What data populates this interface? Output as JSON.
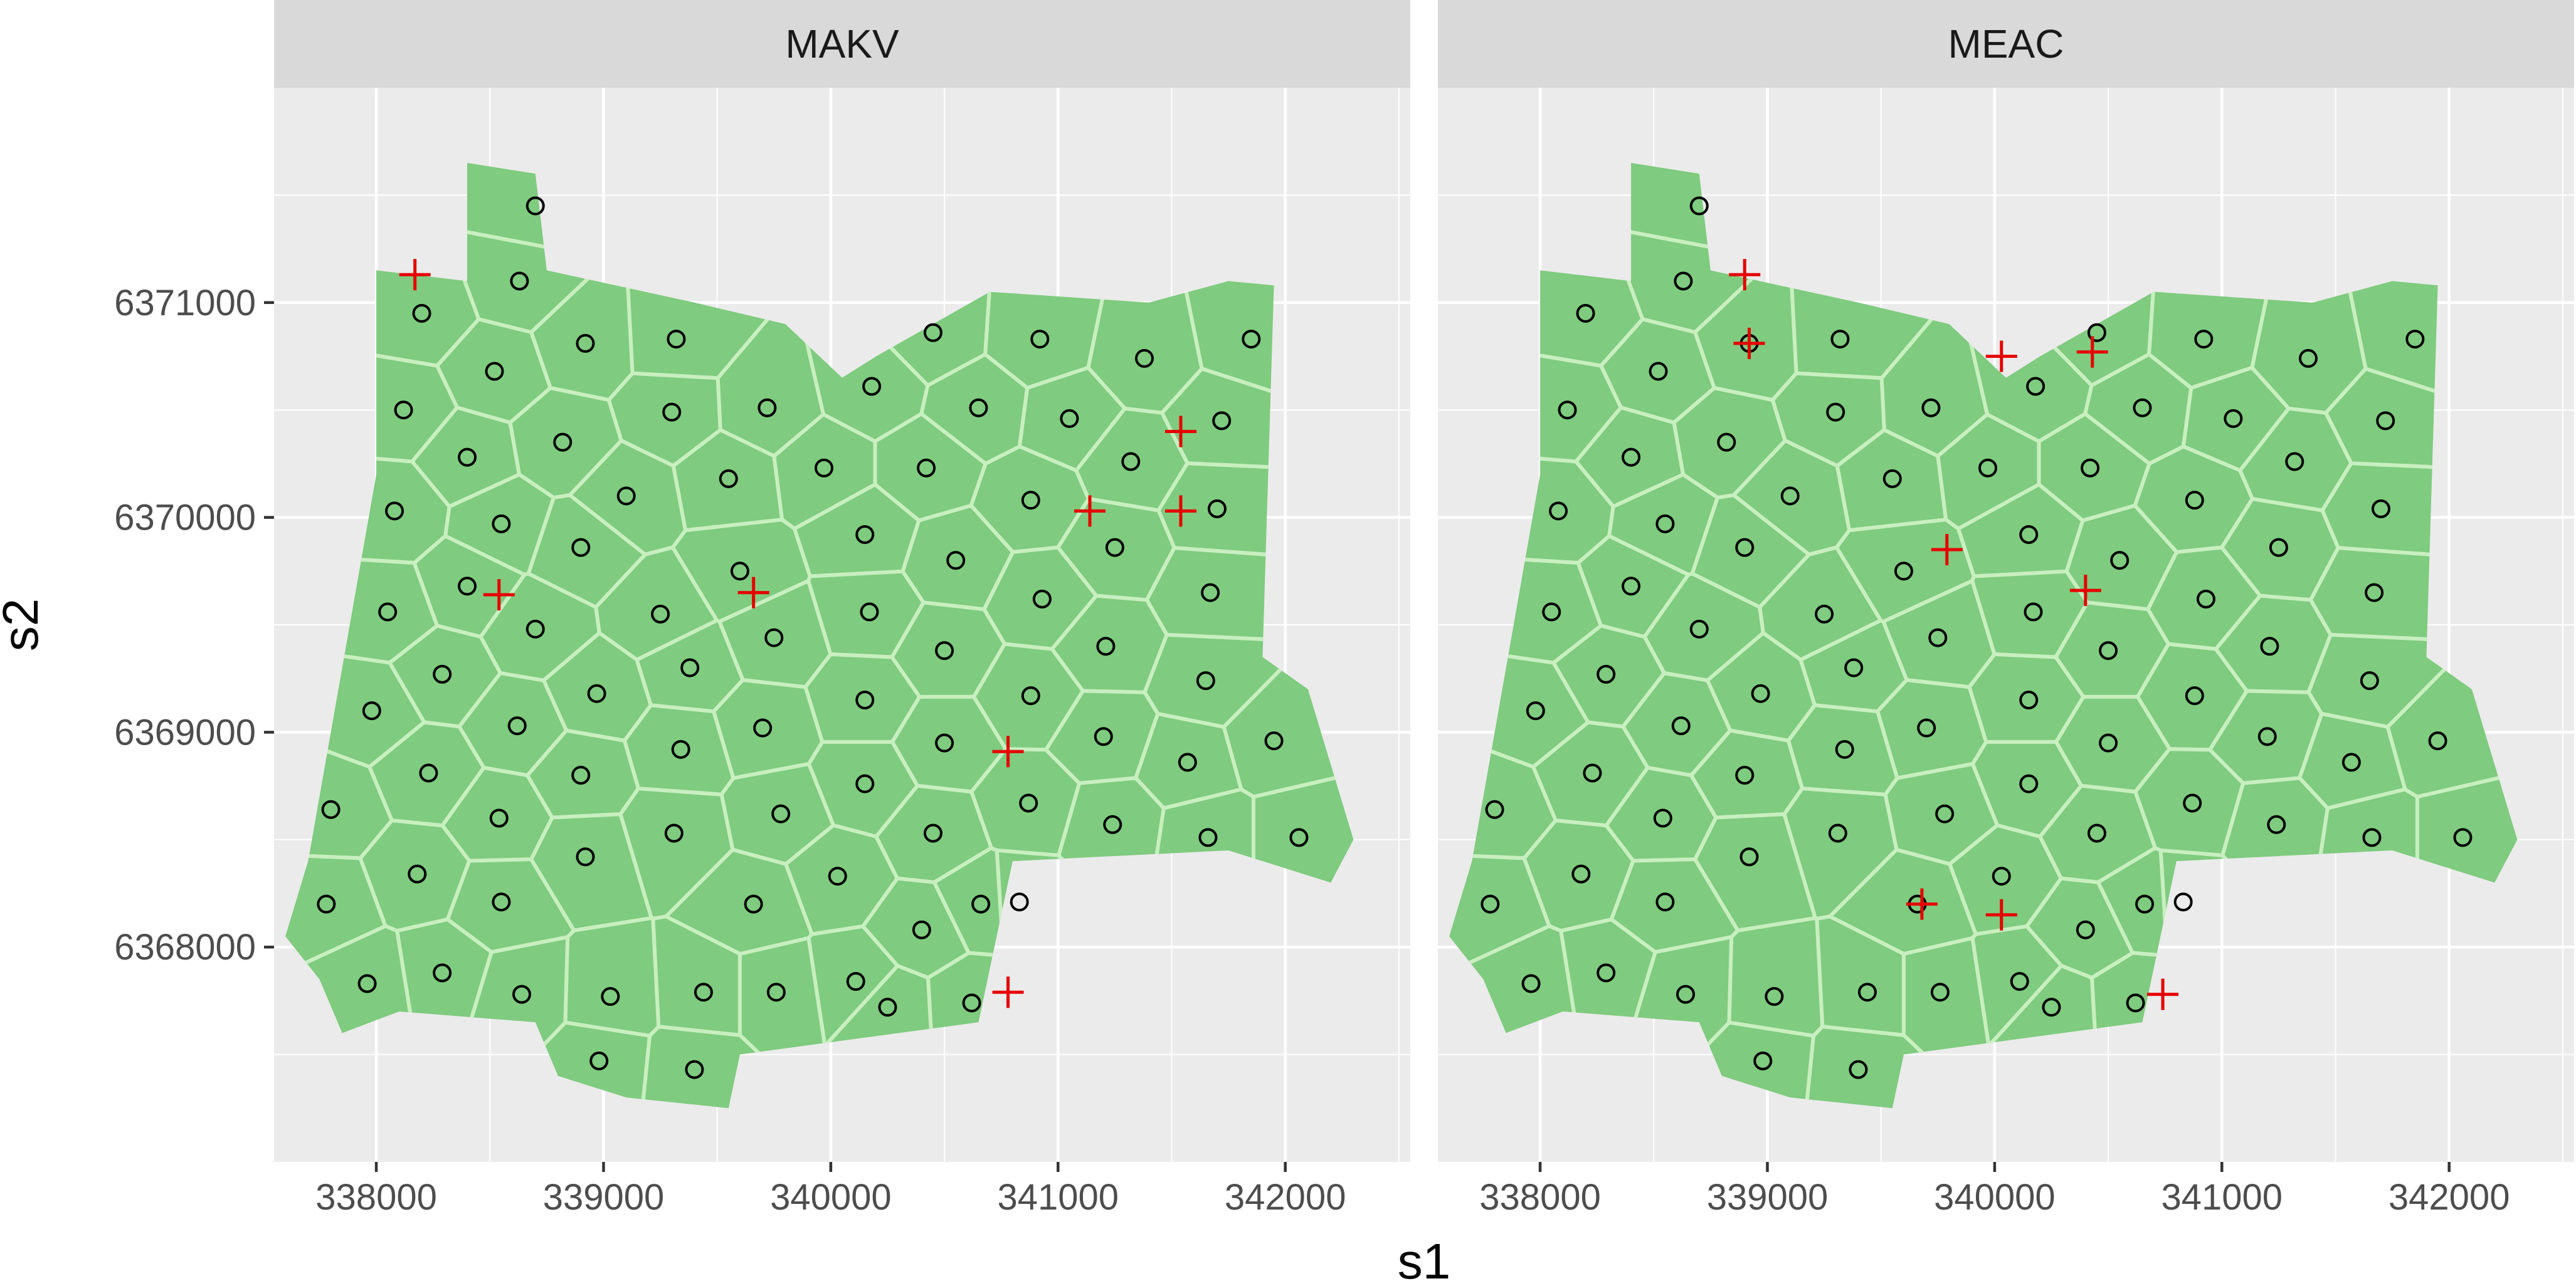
{
  "chart_data": {
    "type": "scatter",
    "xlabel": "s1",
    "ylabel": "s2",
    "xlim": [
      337550,
      342550
    ],
    "ylim": [
      6367000,
      6372000
    ],
    "xticks": [
      338000,
      339000,
      340000,
      341000,
      342000
    ],
    "yticks": [
      6368000,
      6369000,
      6370000,
      6371000
    ],
    "xtick_labels": [
      "338000",
      "339000",
      "340000",
      "341000",
      "342000"
    ],
    "ytick_labels": [
      "6368000",
      "6369000",
      "6370000",
      "6371000"
    ],
    "grid": true,
    "colors": {
      "panel_bg": "#ebebeb",
      "strip_bg": "#d9d9d9",
      "grid": "#ffffff",
      "region": "#7fcb7f",
      "cell_border": "#c8efc0",
      "point": "#000000",
      "selected": "#e60000"
    },
    "boundary": [
      [
        338400,
        6371650
      ],
      [
        338700,
        6371600
      ],
      [
        338750,
        6371150
      ],
      [
        339400,
        6371000
      ],
      [
        339800,
        6370900
      ],
      [
        340050,
        6370650
      ],
      [
        340200,
        6370750
      ],
      [
        340700,
        6371050
      ],
      [
        341400,
        6371000
      ],
      [
        341750,
        6371100
      ],
      [
        341950,
        6371080
      ],
      [
        341900,
        6369350
      ],
      [
        342100,
        6369200
      ],
      [
        342300,
        6368500
      ],
      [
        342200,
        6368300
      ],
      [
        341750,
        6368450
      ],
      [
        340800,
        6368400
      ],
      [
        340650,
        6367650
      ],
      [
        339600,
        6367500
      ],
      [
        339550,
        6367250
      ],
      [
        339100,
        6367300
      ],
      [
        338800,
        6367400
      ],
      [
        338700,
        6367650
      ],
      [
        338100,
        6367700
      ],
      [
        337850,
        6367600
      ],
      [
        337750,
        6367850
      ],
      [
        337600,
        6368050
      ],
      [
        337700,
        6368400
      ],
      [
        337800,
        6369000
      ],
      [
        337900,
        6369600
      ],
      [
        338000,
        6370200
      ],
      [
        338000,
        6370650
      ],
      [
        338000,
        6371150
      ],
      [
        338400,
        6371100
      ]
    ],
    "points": [
      [
        338700,
        6371450
      ],
      [
        338630,
        6371100
      ],
      [
        338200,
        6370950
      ],
      [
        338520,
        6370680
      ],
      [
        338920,
        6370810
      ],
      [
        339320,
        6370830
      ],
      [
        340450,
        6370860
      ],
      [
        340920,
        6370830
      ],
      [
        341380,
        6370740
      ],
      [
        341850,
        6370830
      ],
      [
        338120,
        6370500
      ],
      [
        338400,
        6370280
      ],
      [
        338820,
        6370350
      ],
      [
        339300,
        6370490
      ],
      [
        339720,
        6370510
      ],
      [
        340180,
        6370610
      ],
      [
        340650,
        6370510
      ],
      [
        341050,
        6370460
      ],
      [
        341720,
        6370450
      ],
      [
        338080,
        6370030
      ],
      [
        338550,
        6369970
      ],
      [
        339100,
        6370100
      ],
      [
        339550,
        6370180
      ],
      [
        339970,
        6370230
      ],
      [
        340420,
        6370230
      ],
      [
        340880,
        6370080
      ],
      [
        341320,
        6370260
      ],
      [
        341700,
        6370040
      ],
      [
        338050,
        6369560
      ],
      [
        338400,
        6369680
      ],
      [
        338700,
        6369480
      ],
      [
        338900,
        6369860
      ],
      [
        339250,
        6369550
      ],
      [
        339600,
        6369750
      ],
      [
        339750,
        6369440
      ],
      [
        340150,
        6369920
      ],
      [
        340170,
        6369560
      ],
      [
        340550,
        6369800
      ],
      [
        340930,
        6369620
      ],
      [
        341250,
        6369860
      ],
      [
        341670,
        6369650
      ],
      [
        337980,
        6369100
      ],
      [
        338290,
        6369270
      ],
      [
        338620,
        6369030
      ],
      [
        338970,
        6369180
      ],
      [
        339380,
        6369300
      ],
      [
        339700,
        6369020
      ],
      [
        340150,
        6369150
      ],
      [
        340500,
        6369380
      ],
      [
        340880,
        6369170
      ],
      [
        341210,
        6369400
      ],
      [
        341650,
        6369240
      ],
      [
        337800,
        6368640
      ],
      [
        338230,
        6368810
      ],
      [
        338540,
        6368600
      ],
      [
        338900,
        6368800
      ],
      [
        339340,
        6368920
      ],
      [
        339780,
        6368620
      ],
      [
        340150,
        6368760
      ],
      [
        340500,
        6368950
      ],
      [
        340870,
        6368670
      ],
      [
        341200,
        6368980
      ],
      [
        341570,
        6368860
      ],
      [
        341950,
        6368960
      ],
      [
        337780,
        6368200
      ],
      [
        338180,
        6368340
      ],
      [
        338550,
        6368210
      ],
      [
        338920,
        6368420
      ],
      [
        339310,
        6368530
      ],
      [
        339660,
        6368200
      ],
      [
        340030,
        6368330
      ],
      [
        340450,
        6368530
      ],
      [
        340830,
        6368210
      ],
      [
        341240,
        6368570
      ],
      [
        341660,
        6368510
      ],
      [
        342060,
        6368510
      ],
      [
        337960,
        6367830
      ],
      [
        338290,
        6367880
      ],
      [
        338640,
        6367780
      ],
      [
        339030,
        6367770
      ],
      [
        339440,
        6367790
      ],
      [
        339760,
        6367790
      ],
      [
        340110,
        6367840
      ],
      [
        340400,
        6368080
      ],
      [
        340660,
        6368200
      ],
      [
        340250,
        6367720
      ],
      [
        340620,
        6367740
      ],
      [
        338980,
        6367470
      ],
      [
        339400,
        6367430
      ]
    ],
    "series": [
      {
        "name": "MAKV",
        "selected": [
          [
            338170,
            6371130
          ],
          [
            338540,
            6369640
          ],
          [
            339660,
            6369650
          ],
          [
            341140,
            6370030
          ],
          [
            341540,
            6370400
          ],
          [
            341540,
            6370030
          ],
          [
            340780,
            6368910
          ],
          [
            340780,
            6367790
          ]
        ]
      },
      {
        "name": "MEAC",
        "selected": [
          [
            338900,
            6371130
          ],
          [
            338920,
            6370810
          ],
          [
            340030,
            6370750
          ],
          [
            340430,
            6370770
          ],
          [
            339790,
            6369850
          ],
          [
            340400,
            6369660
          ],
          [
            339680,
            6368200
          ],
          [
            340030,
            6368150
          ],
          [
            340740,
            6367780
          ]
        ]
      }
    ]
  },
  "panels": [
    {
      "strip_label": "MAKV"
    },
    {
      "strip_label": "MEAC"
    }
  ]
}
